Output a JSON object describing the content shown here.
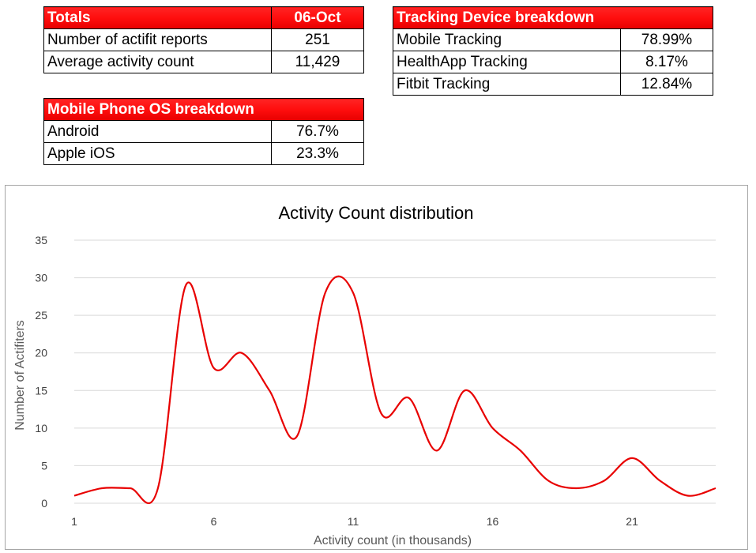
{
  "totals": {
    "title": "Totals",
    "date": "06-Oct",
    "rows": [
      {
        "label": "Number of actifit reports",
        "value": "251"
      },
      {
        "label": "Average activity count",
        "value": "11,429"
      }
    ]
  },
  "devices": {
    "title": "Tracking Device breakdown",
    "rows": [
      {
        "label": "Mobile Tracking",
        "value": "78.99%"
      },
      {
        "label": "HealthApp Tracking",
        "value": "8.17%"
      },
      {
        "label": "Fitbit Tracking",
        "value": "12.84%"
      }
    ]
  },
  "os": {
    "title": "Mobile Phone OS breakdown",
    "rows": [
      {
        "label": "Android",
        "value": "76.7%"
      },
      {
        "label": "Apple iOS",
        "value": "23.3%"
      }
    ]
  },
  "colors": {
    "header_red": "#ff1a1a",
    "line_red": "#e80000",
    "grid": "#d9d9d9"
  },
  "chart_data": {
    "type": "line",
    "title": "Activity Count distribution",
    "xlabel": "Activity count (in thousands)",
    "ylabel": "Number of Actifiters",
    "xlim": [
      1,
      24
    ],
    "ylim": [
      0,
      35
    ],
    "x_ticks": [
      1,
      6,
      11,
      16,
      21
    ],
    "y_ticks": [
      0,
      5,
      10,
      15,
      20,
      25,
      30,
      35
    ],
    "smooth": true,
    "grid": true,
    "series": [
      {
        "x": [
          1,
          2,
          3,
          4,
          5,
          6,
          7,
          8,
          9,
          10,
          11,
          12,
          13,
          14,
          15,
          16,
          17,
          18,
          19,
          20,
          21,
          22,
          23,
          24
        ],
        "values": [
          1,
          2,
          2,
          2,
          29,
          18,
          20,
          15,
          9,
          28,
          28,
          12,
          14,
          7,
          15,
          10,
          7,
          3,
          2,
          3,
          6,
          3,
          1,
          2
        ]
      }
    ]
  }
}
